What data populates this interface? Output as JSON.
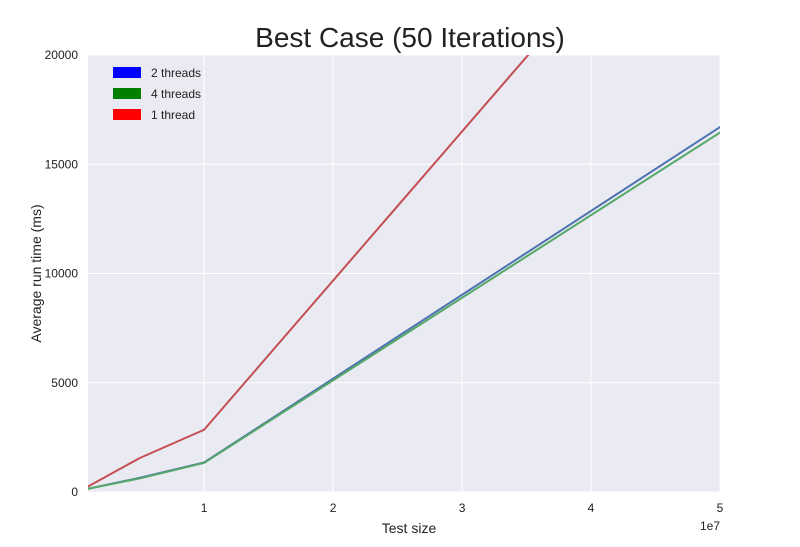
{
  "chart_data": {
    "type": "line",
    "title": "Best Case (50 Iterations)",
    "xlabel": "Test size",
    "ylabel": "Average run time (ms)",
    "x_offset_text": "1e7",
    "xlim": [
      1000000,
      50000000
    ],
    "ylim": [
      0,
      20000
    ],
    "x_ticks": [
      10000000,
      20000000,
      30000000,
      40000000,
      50000000
    ],
    "x_tick_labels": [
      "1",
      "2",
      "3",
      "4",
      "5"
    ],
    "y_ticks": [
      0,
      5000,
      10000,
      15000,
      20000
    ],
    "y_tick_labels": [
      "0",
      "5000",
      "10000",
      "15000",
      "20000"
    ],
    "grid": true,
    "legend_position": "upper-left",
    "series": [
      {
        "name": "2 threads",
        "legend_color": "#0000ff",
        "line_color": "#4c72b0",
        "x": [
          1000000,
          5000000,
          10000000,
          50000000
        ],
        "y": [
          150,
          650,
          1350,
          16700
        ]
      },
      {
        "name": "4 threads",
        "legend_color": "#008000",
        "line_color": "#55a868",
        "x": [
          1000000,
          5000000,
          10000000,
          50000000
        ],
        "y": [
          150,
          620,
          1330,
          16450
        ]
      },
      {
        "name": "1 thread",
        "legend_color": "#ff0000",
        "line_color": "#c44e52",
        "x": [
          1000000,
          5000000,
          10000000,
          50000000
        ],
        "y": [
          250,
          1550,
          2850,
          30150
        ]
      }
    ]
  }
}
